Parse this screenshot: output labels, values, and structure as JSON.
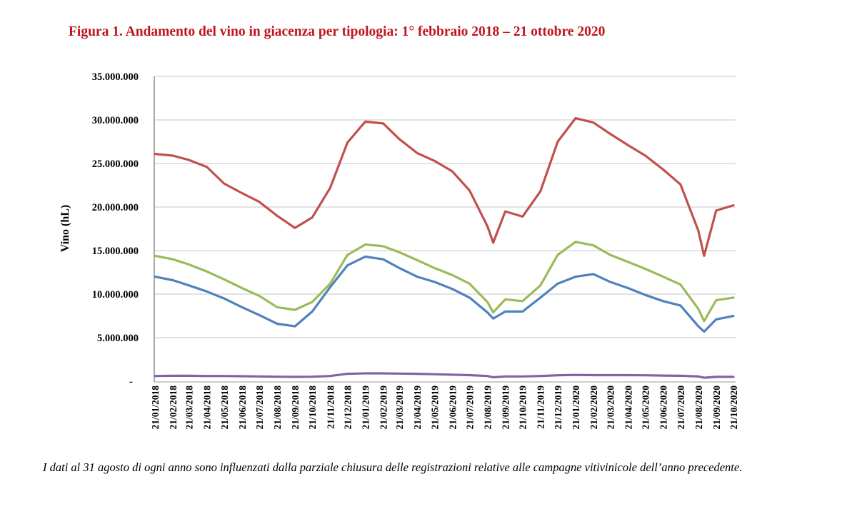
{
  "chart_data": {
    "type": "line",
    "title": "Figura 1. Andamento del vino in giacenza per tipologia: 1° febbraio 2018 – 21 ottobre 2020",
    "ylabel": "Vino (hL)",
    "xlabel": "",
    "ylim": [
      0,
      35000000
    ],
    "yticks": [
      0,
      5000000,
      10000000,
      15000000,
      20000000,
      25000000,
      30000000,
      35000000
    ],
    "ytick_labels": [
      "-",
      "5.000.000",
      "10.000.000",
      "15.000.000",
      "20.000.000",
      "25.000.000",
      "30.000.000",
      "35.000.000"
    ],
    "xtick_labels": [
      "21/01/2018",
      "21/02/2018",
      "21/03/2018",
      "21/04/2018",
      "21/05/2018",
      "21/06/2018",
      "21/07/2018",
      "21/08/2018",
      "21/09/2018",
      "21/10/2018",
      "21/11/2018",
      "21/12/2018",
      "21/01/2019",
      "21/02/2019",
      "21/03/2019",
      "21/04/2019",
      "21/05/2019",
      "21/06/2019",
      "21/07/2019",
      "21/08/2019",
      "21/09/2019",
      "21/10/2019",
      "21/11/2019",
      "21/12/2019",
      "21/01/2020",
      "21/02/2020",
      "21/03/2020",
      "21/04/2020",
      "21/05/2020",
      "21/06/2020",
      "21/07/2020",
      "21/08/2020",
      "21/09/2020",
      "21/10/2020"
    ],
    "grid": true,
    "legend": "none",
    "x": [
      "21/01/2018",
      "21/02/2018",
      "21/03/2018",
      "21/04/2018",
      "21/05/2018",
      "21/06/2018",
      "21/07/2018",
      "21/08/2018",
      "21/09/2018",
      "21/10/2018",
      "21/11/2018",
      "21/12/2018",
      "21/01/2019",
      "21/02/2019",
      "21/03/2019",
      "21/04/2019",
      "21/05/2019",
      "21/06/2019",
      "21/07/2019",
      "21/08/2019",
      "31/08/2019",
      "21/09/2019",
      "21/10/2019",
      "21/11/2019",
      "21/12/2019",
      "21/01/2020",
      "21/02/2020",
      "21/03/2020",
      "21/04/2020",
      "21/05/2020",
      "21/06/2020",
      "21/07/2020",
      "21/08/2020",
      "31/08/2020",
      "21/09/2020",
      "21/10/2020"
    ],
    "series": [
      {
        "color": "#c0504d",
        "values": [
          26100000,
          25900000,
          25400000,
          24600000,
          22700000,
          21600000,
          20600000,
          19000000,
          17600000,
          18800000,
          22200000,
          27400000,
          29800000,
          29600000,
          27800000,
          26200000,
          25300000,
          24100000,
          21900000,
          17800000,
          15900000,
          19500000,
          18900000,
          21800000,
          27500000,
          30200000,
          29700000,
          28400000,
          27100000,
          25900000,
          24300000,
          22600000,
          17300000,
          14400000,
          19600000,
          20200000
        ]
      },
      {
        "color": "#9bbb59",
        "values": [
          14400000,
          14000000,
          13400000,
          12600000,
          11700000,
          10700000,
          9800000,
          8500000,
          8200000,
          9100000,
          11200000,
          14500000,
          15700000,
          15500000,
          14800000,
          13900000,
          13000000,
          12200000,
          11200000,
          9100000,
          7900000,
          9400000,
          9200000,
          11000000,
          14500000,
          16000000,
          15600000,
          14500000,
          13700000,
          12900000,
          12000000,
          11100000,
          8300000,
          6900000,
          9300000,
          9600000
        ]
      },
      {
        "color": "#4f81bd",
        "values": [
          12000000,
          11600000,
          11000000,
          10300000,
          9500000,
          8500000,
          7600000,
          6600000,
          6300000,
          8000000,
          10800000,
          13300000,
          14300000,
          14000000,
          13000000,
          12000000,
          11400000,
          10600000,
          9600000,
          7900000,
          7200000,
          8000000,
          8000000,
          9600000,
          11200000,
          12000000,
          12300000,
          11400000,
          10700000,
          9900000,
          9200000,
          8700000,
          6300000,
          5700000,
          7100000,
          7500000
        ]
      },
      {
        "color": "#8064a2",
        "values": [
          600000,
          620000,
          620000,
          600000,
          600000,
          570000,
          550000,
          520000,
          500000,
          520000,
          600000,
          850000,
          900000,
          900000,
          880000,
          850000,
          800000,
          750000,
          700000,
          600000,
          450000,
          550000,
          550000,
          600000,
          680000,
          720000,
          700000,
          700000,
          700000,
          680000,
          650000,
          620000,
          550000,
          400000,
          500000,
          500000
        ]
      }
    ]
  },
  "caption": "I dati al 31 agosto di ogni anno sono influenzati dalla parziale chiusura delle registrazioni relative alle campagne vitivinicole dell’anno precedente."
}
